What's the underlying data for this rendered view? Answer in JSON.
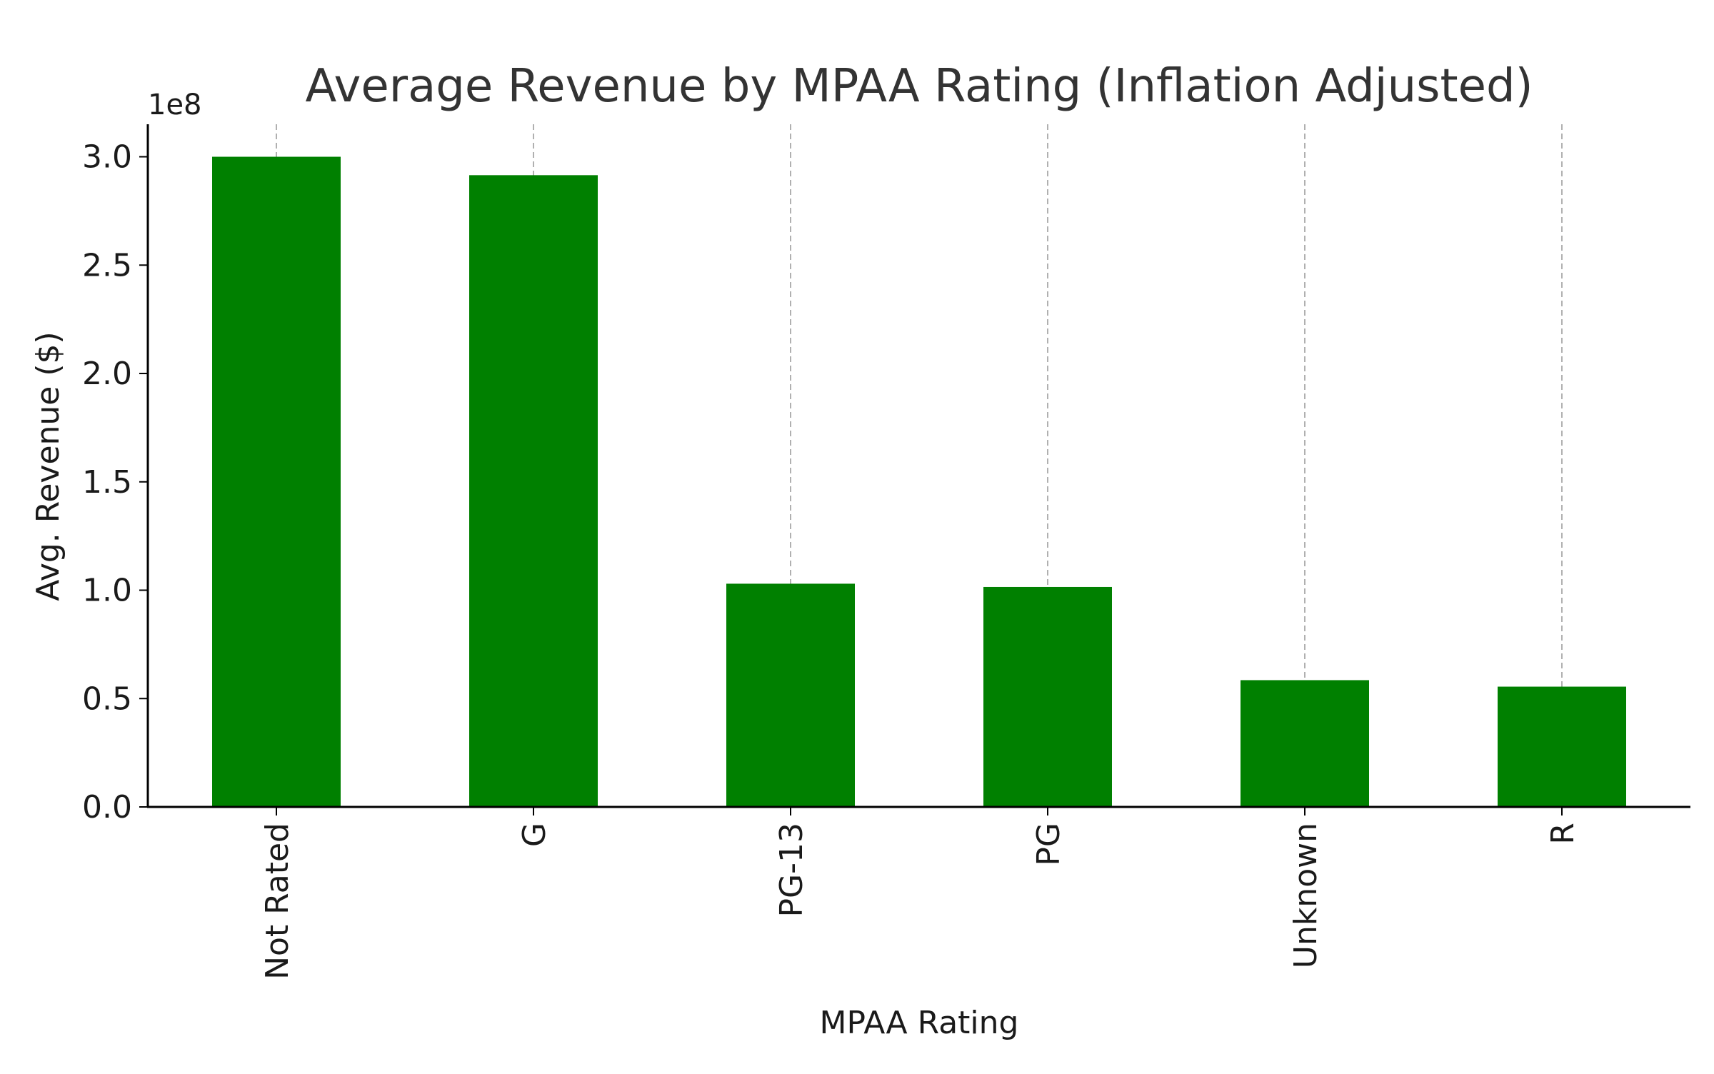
{
  "chart_data": {
    "type": "bar",
    "title": "Average Revenue by MPAA Rating (Inflation Adjusted)",
    "xlabel": "MPAA Rating",
    "ylabel": "Avg. Revenue ($)",
    "scale_label": "1e8",
    "scale_factor": 100000000,
    "categories": [
      "Not Rated",
      "G",
      "PG-13",
      "PG",
      "Unknown",
      "R"
    ],
    "values": [
      300000000,
      291500000,
      103000000,
      101500000,
      58500000,
      55500000
    ],
    "ylim": [
      0,
      315000000
    ],
    "yticks": [
      0,
      50000000,
      100000000,
      150000000,
      200000000,
      250000000,
      300000000
    ],
    "ytick_labels": [
      "0.0",
      "0.5",
      "1.0",
      "1.5",
      "2.0",
      "2.5",
      "3.0"
    ],
    "grid": "vertical dashed",
    "bar_color": "#008000",
    "grid_color": "#b0b0b0",
    "axis_color": "#000000"
  }
}
